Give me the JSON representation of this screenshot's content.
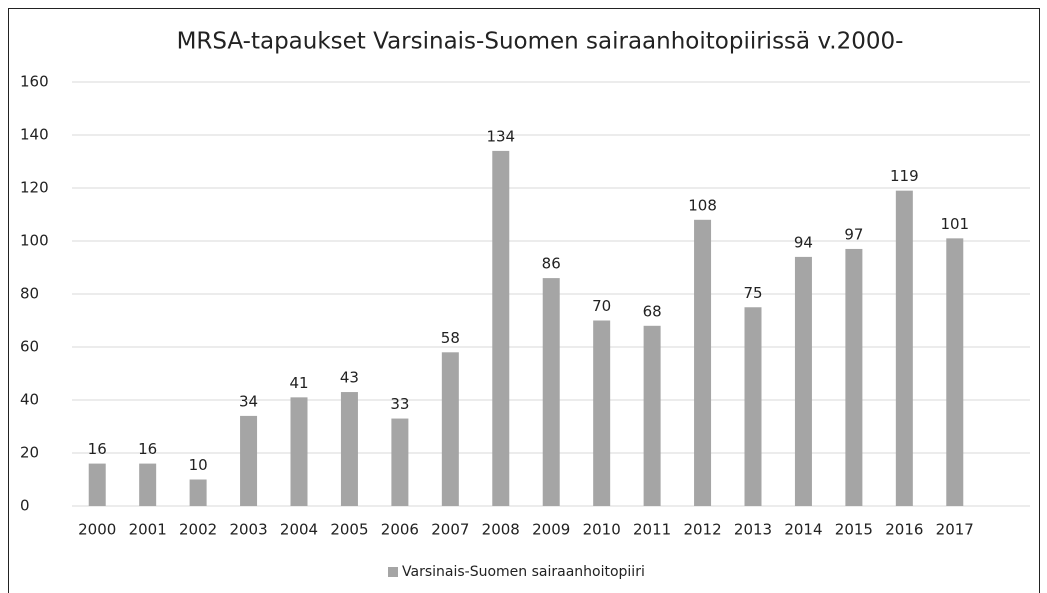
{
  "chart_data": {
    "type": "bar",
    "title": "MRSA-tapaukset Varsinais-Suomen sairaanhoitopiirissä v.2000-",
    "categories": [
      "2000",
      "2001",
      "2002",
      "2003",
      "2004",
      "2005",
      "2006",
      "2007",
      "2008",
      "2009",
      "2010",
      "2011",
      "2012",
      "2013",
      "2014",
      "2015",
      "2016",
      "2017"
    ],
    "series": [
      {
        "name": "Varsinais-Suomen sairaanhoitopiiri",
        "color": "#a5a5a5",
        "values": [
          16,
          16,
          10,
          34,
          41,
          43,
          33,
          58,
          134,
          86,
          70,
          68,
          108,
          75,
          94,
          97,
          119,
          101
        ]
      }
    ],
    "ylim": [
      0,
      160
    ],
    "yticks": [
      0,
      20,
      40,
      60,
      80,
      100,
      120,
      140,
      160
    ],
    "grid": true,
    "legend": "bottom"
  }
}
